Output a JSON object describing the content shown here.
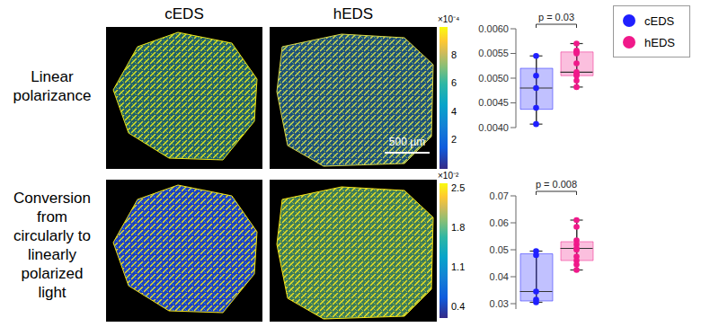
{
  "panels": {
    "columns": [
      "cEDS",
      "hEDS"
    ],
    "rows": [
      {
        "label": "Linear polarizance",
        "colorbar": {
          "multiplier": "×10⁻⁴",
          "range": [
            0,
            10
          ],
          "ticks": [
            2,
            4,
            6,
            8
          ]
        }
      },
      {
        "label": "Conversion from circularly to linearly polarized light",
        "colorbar": {
          "multiplier": "×10⁻²",
          "range": [
            0.2,
            2.6
          ],
          "ticks": [
            0.4,
            1.1,
            1.8,
            2.5
          ]
        }
      }
    ],
    "scale_bar": "500 µm"
  },
  "legend_box": [
    {
      "name": "cEDS",
      "color": "#1f1fff"
    },
    {
      "name": "hEDS",
      "color": "#f0198a"
    }
  ],
  "chart_data": [
    {
      "type": "box",
      "categories": [
        "cEDS",
        "hEDS"
      ],
      "colors": [
        "#1f1fff",
        "#f0198a"
      ],
      "ylim": [
        0.004,
        0.006
      ],
      "yticks": [
        {
          "value": 0.004,
          "label": "0.0040"
        },
        0.0045,
        {
          "value": 0.005,
          "label": "0.0050"
        },
        0.0055,
        {
          "value": 0.006,
          "label": "0.0060"
        }
      ],
      "annotations": [
        "p = 0.03"
      ],
      "boxes": [
        {
          "min": 0.00407,
          "q1": 0.00437,
          "median": 0.0048,
          "q3": 0.0052,
          "max": 0.00545,
          "points": [
            0.00545,
            0.00505,
            0.0048,
            0.0044,
            0.00407
          ]
        },
        {
          "min": 0.00482,
          "q1": 0.00505,
          "median": 0.00512,
          "q3": 0.00553,
          "max": 0.0057,
          "points": [
            0.0057,
            0.00556,
            0.00553,
            0.0055,
            0.0053,
            0.00512,
            0.00508,
            0.00505,
            0.00495,
            0.00482
          ]
        }
      ]
    },
    {
      "type": "box",
      "categories": [
        "cEDS",
        "hEDS"
      ],
      "colors": [
        "#1f1fff",
        "#f0198a"
      ],
      "ylim": [
        0.028,
        0.07
      ],
      "yticks": [
        0.03,
        0.04,
        0.05,
        0.06,
        0.07
      ],
      "annotations": [
        "p = 0.008"
      ],
      "boxes": [
        {
          "min": 0.0305,
          "q1": 0.031,
          "median": 0.0345,
          "q3": 0.0485,
          "max": 0.0495,
          "points": [
            0.0495,
            0.048,
            0.0345,
            0.0315,
            0.0305
          ]
        },
        {
          "min": 0.0425,
          "q1": 0.046,
          "median": 0.0505,
          "q3": 0.053,
          "max": 0.061,
          "points": [
            0.061,
            0.0585,
            0.0535,
            0.052,
            0.0505,
            0.05,
            0.0475,
            0.046,
            0.0445,
            0.0425
          ]
        }
      ]
    }
  ]
}
